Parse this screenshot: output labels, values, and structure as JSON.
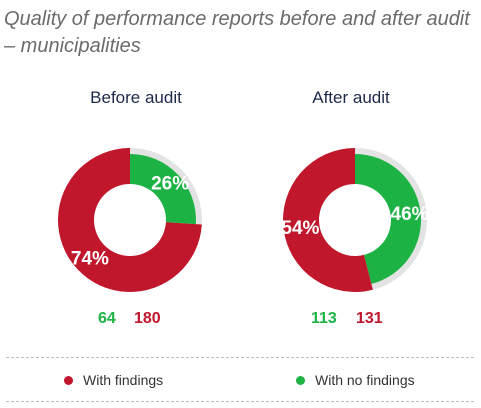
{
  "title": "Quality of performance reports before and after audit – municipalities",
  "colors": {
    "with_findings": "#c0172c",
    "no_findings": "#1db344",
    "track": "#e3e3e3"
  },
  "chart_data": [
    {
      "type": "pie",
      "title": "Before audit",
      "categories": [
        "With no findings",
        "With findings"
      ],
      "values": [
        26,
        74
      ],
      "labels": [
        "26%",
        "74%"
      ],
      "counts": [
        64,
        180
      ]
    },
    {
      "type": "pie",
      "title": "After audit",
      "categories": [
        "With no findings",
        "With findings"
      ],
      "values": [
        46,
        54
      ],
      "labels": [
        "46%",
        "54%"
      ],
      "counts": [
        113,
        131
      ]
    }
  ],
  "legend": [
    "With findings",
    "With no findings"
  ]
}
